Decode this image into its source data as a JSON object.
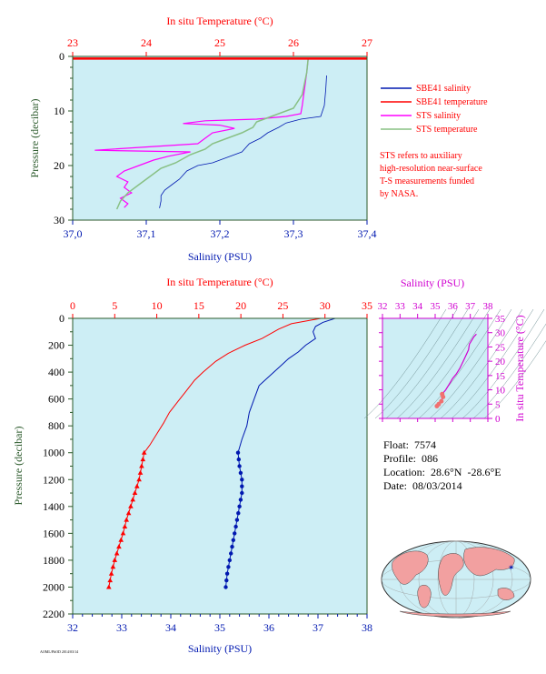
{
  "colors": {
    "plot_bg": "#cdeef5",
    "salinity": "#0018b0",
    "temperature": "#ff0000",
    "sts_salinity": "#ff00ff",
    "sts_temperature": "#88c084",
    "magenta": "#d000d0",
    "axis_dark": "#2b5a2b"
  },
  "chart_data": [
    {
      "id": "top",
      "type": "line",
      "title_top_axis": "In situ Temperature (°C)",
      "xlabel": "Salinity (PSU)",
      "ylabel": "Pressure (decibar)",
      "x_ticks": [
        "37,0",
        "37,1",
        "37,2",
        "37,3",
        "37,4"
      ],
      "top_ticks": [
        "23",
        "24",
        "25",
        "26",
        "27"
      ],
      "y_ticks": [
        "0",
        "10",
        "20",
        "30"
      ],
      "xlim": [
        37.0,
        37.4
      ],
      "temp_lim": [
        23,
        27
      ],
      "ylim": [
        0,
        30
      ],
      "legend": [
        {
          "label": "SBE41 salinity",
          "color": "#0018b0"
        },
        {
          "label": "SBE41 temperature",
          "color": "#ff0000"
        },
        {
          "label": "STS salinity",
          "color": "#ff00ff"
        },
        {
          "label": "STS temperature",
          "color": "#88c084"
        }
      ],
      "note": [
        "STS refers to auxiliary",
        "high-resolution near-surface",
        "T-S measurements funded",
        "by NASA."
      ],
      "series": [
        {
          "name": "SBE41 salinity",
          "axis": "salinity",
          "points": [
            [
              37.345,
              3.5
            ],
            [
              37.344,
              6
            ],
            [
              37.342,
              9
            ],
            [
              37.337,
              11
            ],
            [
              37.31,
              11.5
            ],
            [
              37.29,
              12.2
            ],
            [
              37.28,
              13
            ],
            [
              37.265,
              14
            ],
            [
              37.255,
              15
            ],
            [
              37.24,
              16
            ],
            [
              37.23,
              17.5
            ],
            [
              37.21,
              18.5
            ],
            [
              37.19,
              19.5
            ],
            [
              37.17,
              20
            ],
            [
              37.155,
              21
            ],
            [
              37.145,
              22.5
            ],
            [
              37.135,
              23.5
            ],
            [
              37.125,
              24.5
            ],
            [
              37.12,
              25.5
            ],
            [
              37.12,
              26.5
            ],
            [
              37.118,
              27.8
            ]
          ]
        },
        {
          "name": "SBE41 temperature",
          "axis": "temperature",
          "points": [
            [
              23.0,
              0.4
            ],
            [
              27.0,
              0.4
            ]
          ]
        },
        {
          "name": "STS salinity",
          "axis": "salinity",
          "points": [
            [
              37.32,
              0.5
            ],
            [
              37.318,
              3
            ],
            [
              37.316,
              5
            ],
            [
              37.314,
              7
            ],
            [
              37.312,
              9
            ],
            [
              37.31,
              10.5
            ],
            [
              37.29,
              11
            ],
            [
              37.25,
              11.5
            ],
            [
              37.18,
              11.8
            ],
            [
              37.15,
              12.3
            ],
            [
              37.2,
              12.6
            ],
            [
              37.22,
              13.2
            ],
            [
              37.19,
              14
            ],
            [
              37.18,
              15
            ],
            [
              37.17,
              16
            ],
            [
              37.03,
              17.2
            ],
            [
              37.16,
              17.5
            ],
            [
              37.13,
              18.3
            ],
            [
              37.11,
              19
            ],
            [
              37.09,
              20
            ],
            [
              37.07,
              21
            ],
            [
              37.06,
              22
            ],
            [
              37.075,
              23
            ],
            [
              37.07,
              24
            ],
            [
              37.08,
              25
            ],
            [
              37.065,
              26
            ],
            [
              37.075,
              27
            ],
            [
              37.07,
              27.7
            ]
          ]
        },
        {
          "name": "STS temperature",
          "axis": "temperature",
          "points": [
            [
              26.2,
              0.4
            ],
            [
              26.18,
              3
            ],
            [
              26.15,
              5
            ],
            [
              26.12,
              7
            ],
            [
              26.0,
              9.5
            ],
            [
              25.7,
              11
            ],
            [
              25.5,
              12
            ],
            [
              25.45,
              13
            ],
            [
              25.3,
              14
            ],
            [
              25.1,
              15
            ],
            [
              24.9,
              16
            ],
            [
              24.8,
              17
            ],
            [
              24.6,
              18
            ],
            [
              24.4,
              19.5
            ],
            [
              24.2,
              20.5
            ],
            [
              24.05,
              22
            ],
            [
              23.9,
              23.5
            ],
            [
              23.75,
              25
            ],
            [
              23.65,
              26.5
            ],
            [
              23.6,
              28
            ]
          ]
        }
      ]
    },
    {
      "id": "bottom",
      "type": "line",
      "title_top_axis": "In situ Temperature (°C)",
      "xlabel": "Salinity (PSU)",
      "ylabel": "Pressure (decibar)",
      "x_ticks": [
        "32",
        "33",
        "34",
        "35",
        "36",
        "37",
        "38"
      ],
      "top_ticks": [
        "0",
        "5",
        "10",
        "15",
        "20",
        "25",
        "30",
        "35"
      ],
      "y_ticks": [
        "0",
        "200",
        "400",
        "600",
        "800",
        "1000",
        "1200",
        "1400",
        "1600",
        "1800",
        "2000",
        "2200"
      ],
      "xlim": [
        32,
        38
      ],
      "temp_lim": [
        0,
        35
      ],
      "ylim": [
        0,
        2200
      ],
      "series": [
        {
          "name": "salinity",
          "axis": "salinity",
          "points": [
            [
              37.35,
              0
            ],
            [
              37.1,
              30
            ],
            [
              36.95,
              60
            ],
            [
              36.9,
              100
            ],
            [
              36.95,
              150
            ],
            [
              36.75,
              200
            ],
            [
              36.6,
              250
            ],
            [
              36.4,
              300
            ],
            [
              36.25,
              350
            ],
            [
              36.1,
              400
            ],
            [
              35.95,
              450
            ],
            [
              35.8,
              500
            ],
            [
              35.7,
              600
            ],
            [
              35.6,
              700
            ],
            [
              35.55,
              800
            ],
            [
              35.45,
              900
            ],
            [
              35.37,
              1000
            ],
            [
              35.4,
              1100
            ],
            [
              35.45,
              1200
            ],
            [
              35.45,
              1300
            ],
            [
              35.4,
              1400
            ],
            [
              35.35,
              1500
            ],
            [
              35.3,
              1600
            ],
            [
              35.25,
              1700
            ],
            [
              35.2,
              1800
            ],
            [
              35.15,
              1900
            ],
            [
              35.12,
              2000
            ]
          ]
        },
        {
          "name": "temperature",
          "axis": "temperature",
          "points": [
            [
              29.5,
              0
            ],
            [
              26,
              40
            ],
            [
              24.5,
              80
            ],
            [
              22.5,
              150
            ],
            [
              20.5,
              200
            ],
            [
              18.5,
              260
            ],
            [
              17,
              320
            ],
            [
              15.5,
              400
            ],
            [
              14.5,
              460
            ],
            [
              13.5,
              540
            ],
            [
              12.5,
              620
            ],
            [
              11.5,
              700
            ],
            [
              10.8,
              780
            ],
            [
              10,
              860
            ],
            [
              9.2,
              940
            ],
            [
              8.5,
              1000
            ],
            [
              8.2,
              1100
            ],
            [
              7.9,
              1200
            ],
            [
              7.4,
              1300
            ],
            [
              6.9,
              1400
            ],
            [
              6.4,
              1500
            ],
            [
              6,
              1600
            ],
            [
              5.5,
              1700
            ],
            [
              5,
              1800
            ],
            [
              4.6,
              1900
            ],
            [
              4.3,
              2000
            ]
          ]
        }
      ],
      "marker_pressures": [
        1000,
        1050,
        1100,
        1150,
        1200,
        1250,
        1300,
        1350,
        1400,
        1450,
        1500,
        1550,
        1600,
        1650,
        1700,
        1750,
        1800,
        1850,
        1900,
        1950,
        2000
      ]
    },
    {
      "id": "ts",
      "type": "line",
      "title_top_axis": "Salinity (PSU)",
      "ylabel": "In situ Temperature (°C)",
      "top_ticks": [
        "32",
        "33",
        "34",
        "35",
        "36",
        "37",
        "38"
      ],
      "y_ticks": [
        "0",
        "5",
        "10",
        "15",
        "20",
        "25",
        "30",
        "35"
      ],
      "xlim": [
        32,
        38
      ],
      "ylim": [
        0,
        35
      ],
      "series": [
        {
          "name": "T-S",
          "points": [
            [
              35.1,
              4.3
            ],
            [
              35.2,
              5
            ],
            [
              35.35,
              6
            ],
            [
              35.45,
              7.5
            ],
            [
              35.4,
              8.5
            ],
            [
              35.6,
              10
            ],
            [
              35.8,
              12
            ],
            [
              36.0,
              14
            ],
            [
              36.2,
              15.5
            ],
            [
              36.4,
              17.5
            ],
            [
              36.6,
              20
            ],
            [
              36.75,
              22
            ],
            [
              36.9,
              24
            ],
            [
              36.95,
              26
            ],
            [
              37.2,
              28.5
            ],
            [
              37.35,
              29.5
            ]
          ]
        }
      ]
    }
  ],
  "float_info": {
    "float": "Float:  7574",
    "profile": "Profile:  086",
    "location": "Location:  28.6°N  -28.6°E",
    "date": "Date:  08/03/2014"
  },
  "footer_tiny": "AOML/PhOD 2014/03/14"
}
